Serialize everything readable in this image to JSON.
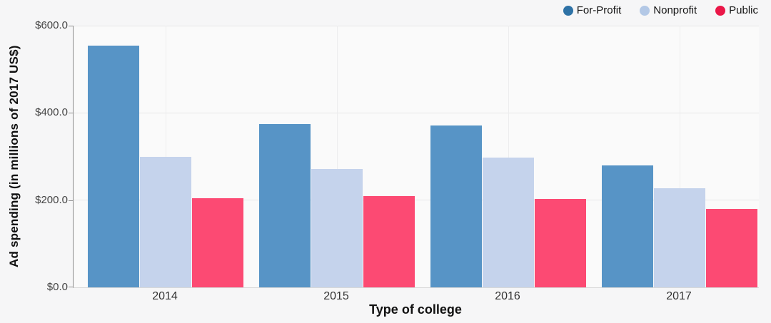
{
  "chart_data": {
    "type": "bar",
    "title": "",
    "xlabel": "Type of college",
    "ylabel": "Ad spending (in millions of 2017 US$)",
    "categories": [
      "2014",
      "2015",
      "2016",
      "2017"
    ],
    "series": [
      {
        "name": "For-Profit",
        "color": "#5794c6",
        "legend_color": "#2e72a6",
        "values": [
          555,
          375,
          371,
          280
        ]
      },
      {
        "name": "Nonprofit",
        "color": "#c5d3ec",
        "legend_color": "#b3c8e6",
        "values": [
          300,
          272,
          297,
          227
        ]
      },
      {
        "name": "Public",
        "color": "#fc4a73",
        "legend_color": "#ea1748",
        "values": [
          205,
          210,
          203,
          180
        ]
      }
    ],
    "ylim": [
      0,
      600
    ],
    "yticks": [
      {
        "value": 600,
        "label": "$600.0"
      },
      {
        "value": 400,
        "label": "$400.0"
      },
      {
        "value": 200,
        "label": "$200.0"
      },
      {
        "value": 0,
        "label": "$0.0"
      }
    ],
    "grid": {
      "horizontal": true,
      "vertical_at_category_centers": true
    },
    "legend_position": "top-right",
    "colors": {
      "page_background": "#f6f6f7",
      "plot_background": "#fafafa",
      "y_axis_line": "#8f8f8f",
      "x_axis_line": "#d8d8d8",
      "gridline": "#e7e7e8"
    }
  }
}
